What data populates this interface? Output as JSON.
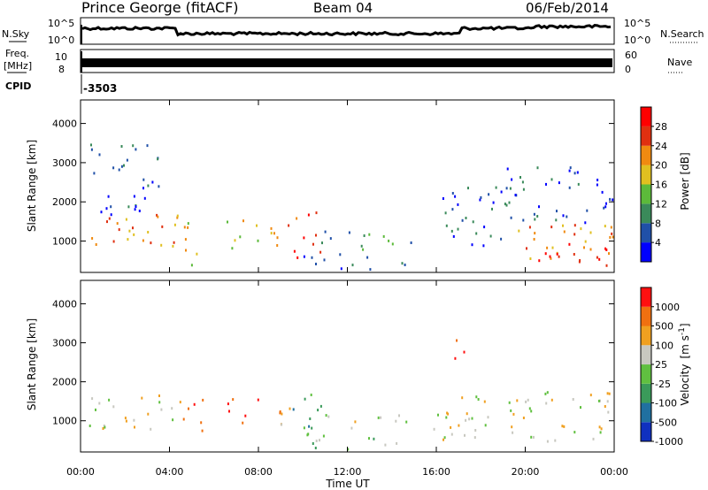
{
  "header": {
    "station": "Prince George (fitACF)",
    "beam": "Beam 04",
    "date": "06/Feb/2014"
  },
  "top_panels": {
    "nsky_label": "N.Sky",
    "nsky_ticks": [
      "10^5",
      "10^0"
    ],
    "nsearch_label": "N.Search",
    "freq_label_1": "Freq.",
    "freq_label_2": "[MHz]",
    "freq_ticks": [
      "10",
      "8"
    ],
    "nave_ticks": [
      "60",
      "0"
    ],
    "nave_label": "Nave",
    "cpid_label": "CPID",
    "cpid_value": "-3503"
  },
  "chart_data": [
    {
      "type": "heatmap",
      "name": "Power",
      "ylabel": "Slant Range [km]",
      "yticks": [
        "1000",
        "2000",
        "3000",
        "4000"
      ],
      "ylim": [
        200,
        4600
      ],
      "xlim": [
        0,
        24
      ],
      "colorbar_label": "Power [dB]",
      "colorbar_ticks": [
        "28",
        "24",
        "20",
        "16",
        "12",
        "8",
        "4"
      ],
      "colors": [
        "#0000ff",
        "#2050a8",
        "#3a8a5a",
        "#5cba3a",
        "#e0c020",
        "#f08a10",
        "#e03010",
        "#ff0000"
      ],
      "regions": [
        {
          "t0": 0.3,
          "t1": 4.6,
          "r0": 700,
          "r1": 1700,
          "level": 5
        },
        {
          "t0": 0.3,
          "t1": 3.5,
          "r0": 1700,
          "r1": 3500,
          "level": 1
        },
        {
          "t0": 4.6,
          "t1": 5.5,
          "r0": 400,
          "r1": 1800,
          "level": 4
        },
        {
          "t0": 6.5,
          "t1": 8.0,
          "r0": 800,
          "r1": 1600,
          "level": 4
        },
        {
          "t0": 8.0,
          "t1": 9.5,
          "r0": 900,
          "r1": 1600,
          "level": 5
        },
        {
          "t0": 9.5,
          "t1": 10.8,
          "r0": 600,
          "r1": 1800,
          "level": 6
        },
        {
          "t0": 10.8,
          "t1": 15.0,
          "r0": 800,
          "r1": 1300,
          "level": 2
        },
        {
          "t0": 10.0,
          "t1": 15.0,
          "r0": 300,
          "r1": 700,
          "level": 1
        },
        {
          "t0": 15.8,
          "t1": 19.0,
          "r0": 900,
          "r1": 2400,
          "level": 1
        },
        {
          "t0": 19.0,
          "t1": 24.0,
          "r0": 500,
          "r1": 1500,
          "level": 5
        },
        {
          "t0": 20.5,
          "t1": 24.0,
          "r0": 400,
          "r1": 1000,
          "level": 7
        },
        {
          "t0": 19.0,
          "t1": 24.0,
          "r0": 1500,
          "r1": 3000,
          "level": 1
        }
      ]
    },
    {
      "type": "heatmap",
      "name": "Velocity",
      "ylabel": "Slant Range [km]",
      "yticks": [
        "1000",
        "2000",
        "3000",
        "4000"
      ],
      "ylim": [
        200,
        4600
      ],
      "xlim": [
        0,
        24
      ],
      "xlabel": "Time UT",
      "xticks": [
        "00:00",
        "04:00",
        "08:00",
        "12:00",
        "16:00",
        "20:00",
        "00:00"
      ],
      "colorbar_label_1": "Velocity",
      "colorbar_label_2": "[m s",
      "colorbar_label_sup": "-1",
      "colorbar_label_3": "]",
      "colorbar_ticks": [
        "1000",
        "500",
        "100",
        "25",
        "-25",
        "-100",
        "-500",
        "-1000"
      ],
      "colors": [
        "#1030c0",
        "#2070a0",
        "#3a9a5a",
        "#60c040",
        "#c8c8c0",
        "#f0a020",
        "#f07010",
        "#ff1010"
      ],
      "regions": [
        {
          "t0": 0.3,
          "t1": 4.4,
          "r0": 800,
          "r1": 1700,
          "level": 4
        },
        {
          "t0": 4.4,
          "t1": 5.5,
          "r0": 600,
          "r1": 1800,
          "level": 6
        },
        {
          "t0": 6.5,
          "t1": 8.0,
          "r0": 900,
          "r1": 1600,
          "level": 7
        },
        {
          "t0": 8.0,
          "t1": 9.5,
          "r0": 900,
          "r1": 1600,
          "level": 5
        },
        {
          "t0": 9.5,
          "t1": 11.0,
          "r0": 600,
          "r1": 1800,
          "level": 2
        },
        {
          "t0": 11.0,
          "t1": 15.0,
          "r0": 800,
          "r1": 1200,
          "level": 4
        },
        {
          "t0": 10.0,
          "t1": 15.0,
          "r0": 300,
          "r1": 700,
          "level": 3
        },
        {
          "t0": 15.8,
          "t1": 24.0,
          "r0": 500,
          "r1": 1800,
          "level": 4
        },
        {
          "t0": 16.8,
          "t1": 17.3,
          "r0": 2600,
          "r1": 3500,
          "level": 7
        }
      ]
    }
  ]
}
